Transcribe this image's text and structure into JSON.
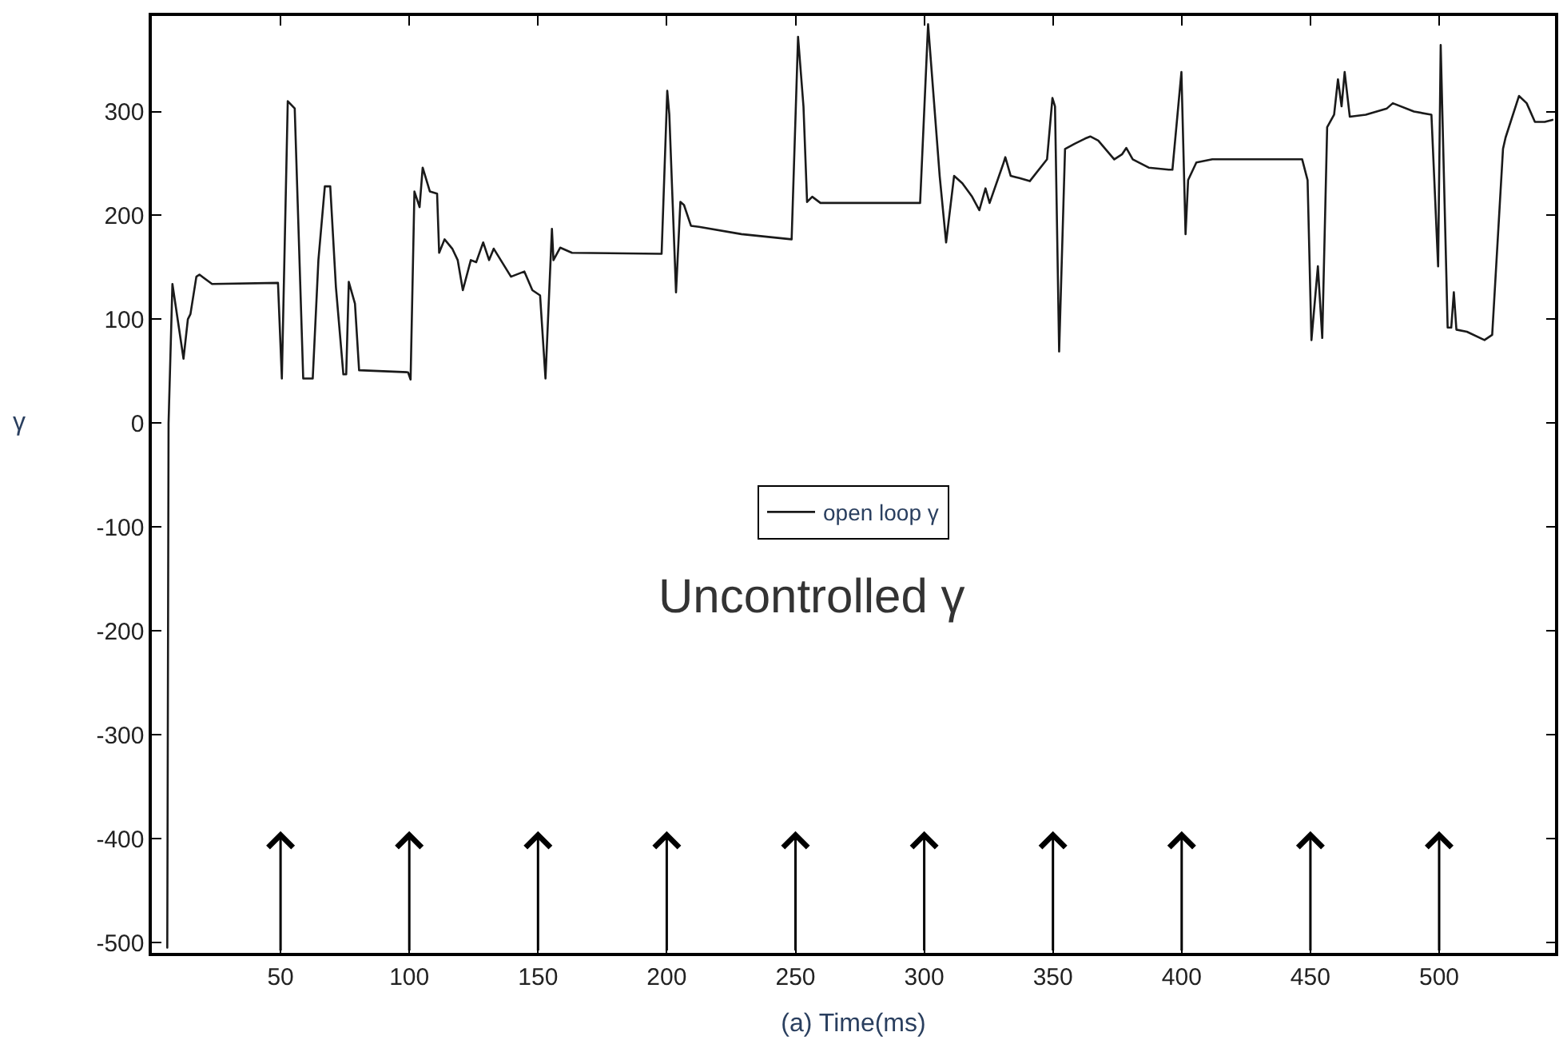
{
  "chart_data": {
    "type": "line",
    "xlabel": "(a) Time(ms)",
    "ylabel": "γ",
    "annotations": [
      "Uncontrolled γ"
    ],
    "x": [
      6,
      6.5,
      8,
      12.3,
      14,
      15,
      17.3,
      18.5,
      23.4,
      49,
      50.5,
      52.8,
      55.5,
      58.8,
      62.5,
      64.7,
      67.2,
      69.3,
      71.5,
      74.4,
      75.5,
      76.5,
      78.9,
      80.5,
      99.5,
      100.5,
      102,
      104,
      105.2,
      108,
      110.8,
      111.6,
      113.7,
      116.7,
      118.8,
      120.8,
      123.9,
      126,
      128.7,
      131,
      132.8,
      139.5,
      144.7,
      147.8,
      150.8,
      152.9,
      155.4,
      156,
      158.6,
      163.2,
      198,
      200.2,
      201,
      203.6,
      205.3,
      206.7,
      209.4,
      212.5,
      229,
      248.5,
      251,
      253.1,
      254.5,
      256.5,
      259.7,
      298.4,
      301.5,
      306,
      308.5,
      311.6,
      314.8,
      318.6,
      321.4,
      323.8,
      325.4,
      330.6,
      331.5,
      333.6,
      337,
      341,
      347.7,
      349.8,
      350.8,
      352.4,
      354.7,
      358.4,
      362.5,
      364.5,
      367.6,
      373.8,
      376.9,
      378.5,
      381,
      387.2,
      395,
      396.4,
      399.9,
      401.5,
      402.5,
      405.7,
      411.9,
      446.8,
      448.9,
      450.4,
      452.9,
      454.6,
      456.5,
      459.2,
      460.7,
      462.1,
      463.3,
      465.3,
      471.5,
      479.7,
      482,
      490.2,
      497,
      499.6,
      500.6,
      503.3,
      504.7,
      505.7,
      506.7,
      510.8,
      517.6,
      520.6,
      524.8,
      525.8,
      531,
      534,
      537.2,
      541,
      544
    ],
    "series": [
      {
        "name": "open loop γ",
        "color": "#1a1a1a",
        "values": [
          -505,
          0,
          134,
          62,
          100,
          105,
          141,
          143,
          134,
          135,
          43,
          310,
          303,
          43,
          43,
          157,
          228,
          228,
          131,
          47,
          47,
          136,
          115,
          51,
          49,
          42,
          223,
          208,
          246,
          223,
          221,
          164,
          177,
          168,
          157,
          128,
          157,
          155,
          174,
          157,
          168,
          141,
          146,
          128,
          123,
          43,
          187,
          157,
          169,
          164,
          163,
          320,
          297,
          126,
          213,
          210,
          190,
          189,
          182,
          177,
          372,
          305,
          213,
          218,
          212,
          212,
          384,
          238,
          174,
          238,
          231,
          218,
          205,
          226,
          212,
          249,
          256,
          238,
          236,
          233,
          254,
          313,
          305,
          69,
          264,
          269,
          274,
          276,
          272,
          254,
          259,
          265,
          254,
          246,
          244,
          244,
          338,
          182,
          234,
          251,
          254,
          254,
          234,
          80,
          151,
          82,
          285,
          297,
          331,
          305,
          338,
          295,
          297,
          303,
          308,
          300,
          297,
          151,
          364,
          92,
          92,
          126,
          90,
          88,
          80,
          85,
          264,
          275,
          315,
          308,
          290,
          290,
          292
        ]
      }
    ],
    "xlim": [
      0,
      545
    ],
    "ylim": [
      -510,
      392
    ],
    "xticks": [
      50,
      100,
      150,
      200,
      250,
      300,
      350,
      400,
      450,
      500
    ],
    "yticks": [
      -500,
      -400,
      -300,
      -200,
      -100,
      0,
      100,
      200,
      300
    ],
    "legend": "center",
    "marker": "none",
    "line_style": "solid"
  }
}
